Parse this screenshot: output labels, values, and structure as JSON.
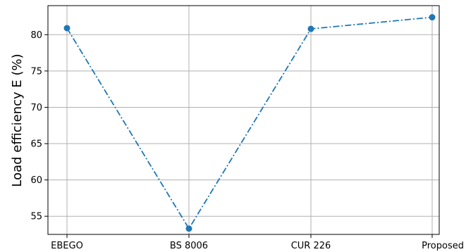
{
  "chart_data": {
    "type": "line",
    "categories": [
      "EBEGO",
      "BS 8006",
      "CUR 226",
      "Proposed"
    ],
    "series": [
      {
        "values": [
          80.9,
          53.3,
          80.8,
          82.4
        ]
      }
    ],
    "title": "",
    "xlabel": "",
    "ylabel": "Load efficiency E (%)",
    "ylim": [
      52.5,
      84.0
    ],
    "yticks": [
      "55",
      "60",
      "65",
      "70",
      "75",
      "80"
    ],
    "grid": true,
    "line_style": "dashdot",
    "marker": "circle",
    "color": "#1f77b4"
  }
}
